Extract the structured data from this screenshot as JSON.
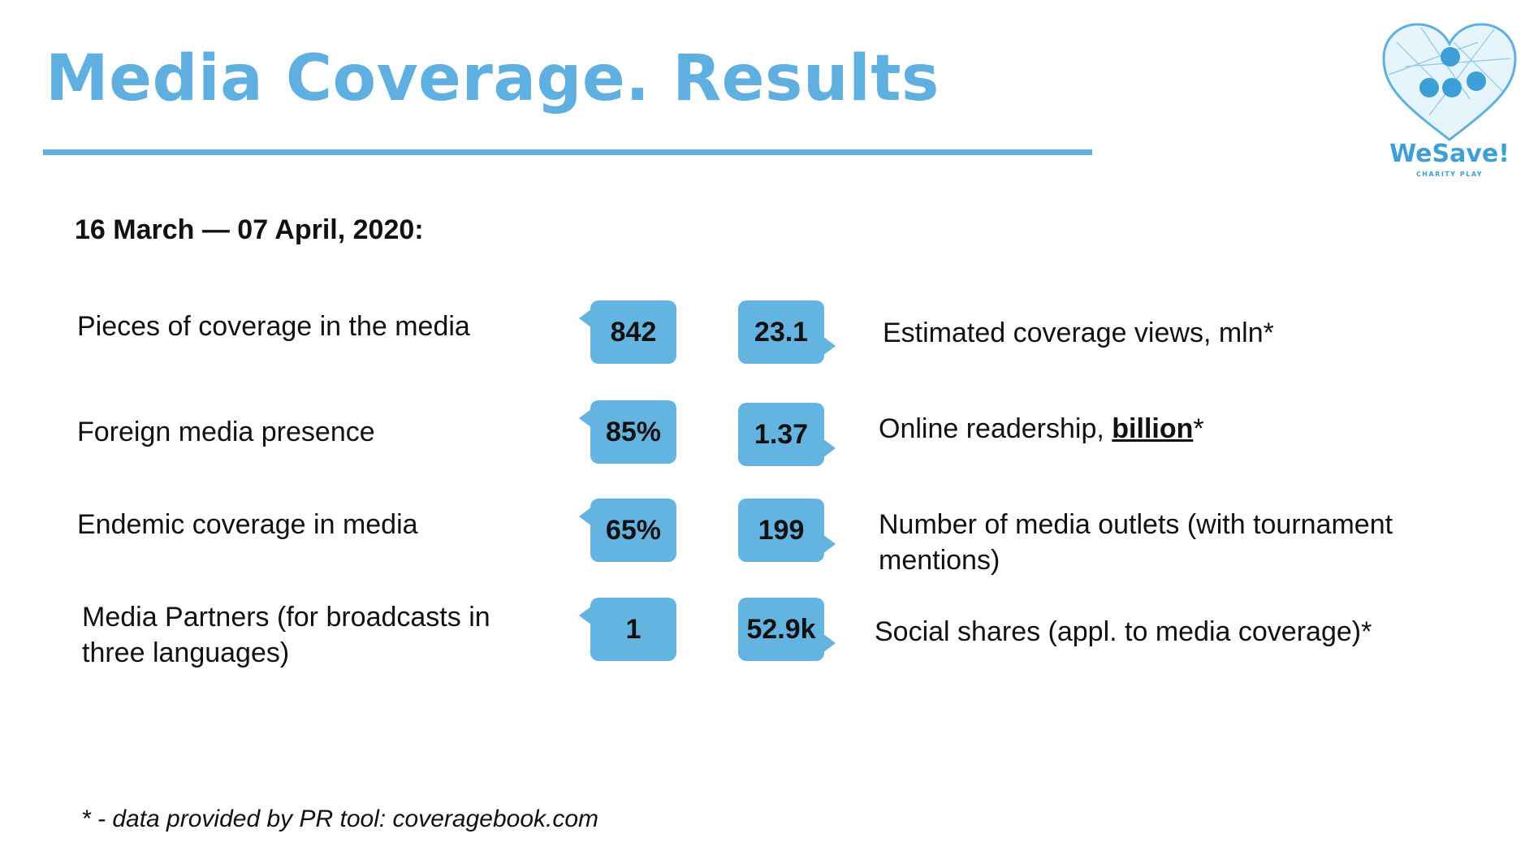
{
  "header": {
    "title": "Media Coverage. Results"
  },
  "logo": {
    "name": "WeSave!",
    "tagline": "CHARITY PLAY"
  },
  "period": "16 March — 07 April, 2020:",
  "rows": [
    {
      "left_label": "Pieces of coverage in the media",
      "left_value": "842",
      "right_value": "23.1",
      "right_label": "Estimated coverage views, mln*"
    },
    {
      "left_label": "Foreign media presence",
      "left_value": "85%",
      "right_value": "1.37",
      "right_label_prefix": "Online readership, ",
      "right_label_emph": "billion",
      "right_label_suffix": "*"
    },
    {
      "left_label": "Endemic coverage in media",
      "left_value": "65%",
      "right_value": "199",
      "right_label": "Number of media outlets (with tournament mentions)"
    },
    {
      "left_label": "Media Partners (for broadcasts in three languages)",
      "left_value": "1",
      "right_value": "52.9k",
      "right_label": "Social shares (appl. to media coverage)*"
    }
  ],
  "footnote": "* - data provided by PR tool: coveragebook.com",
  "colors": {
    "accent": "#5fb0e0",
    "bubble": "#64b4e2",
    "text": "#111111"
  }
}
